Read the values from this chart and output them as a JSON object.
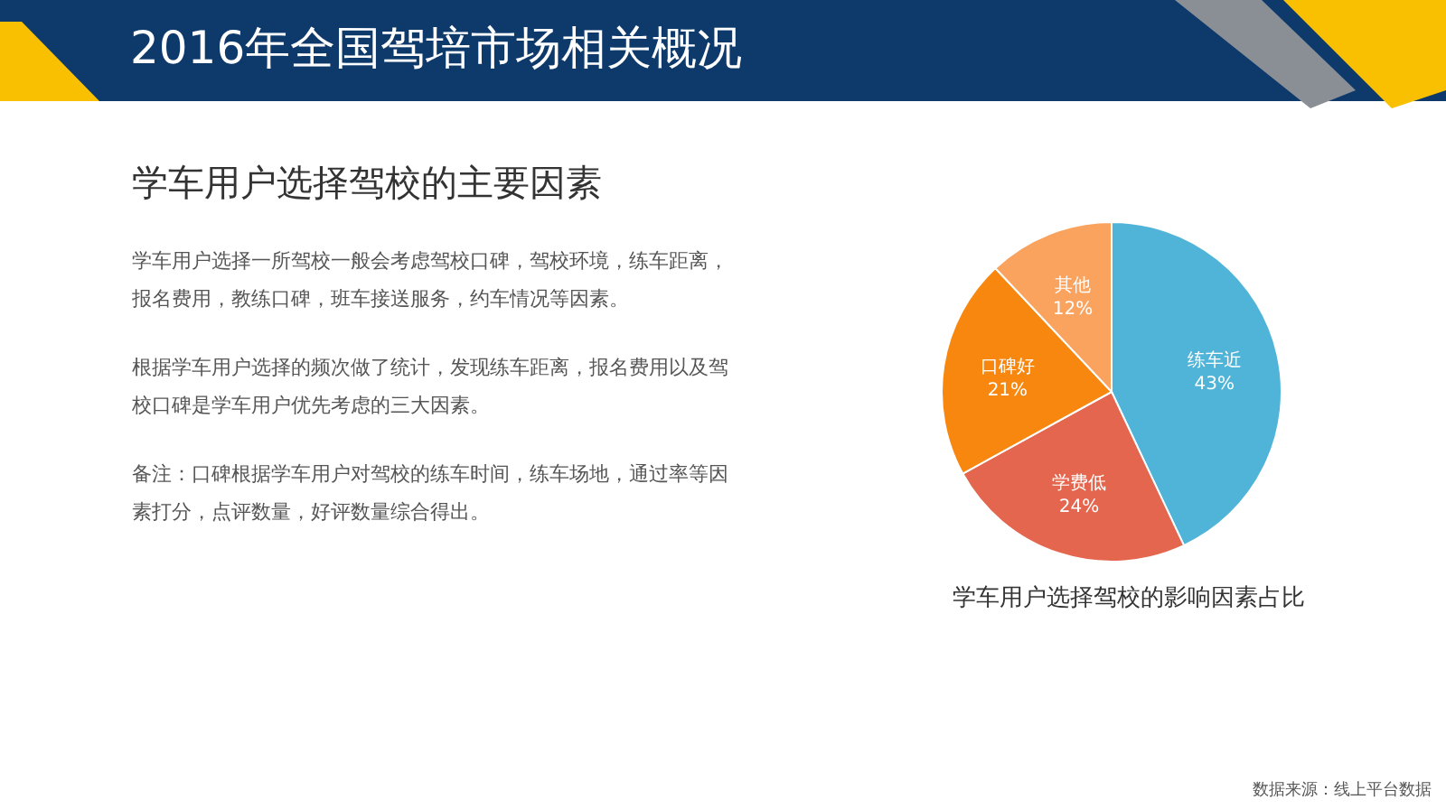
{
  "chart_data": {
    "type": "pie",
    "title": "2016年全国驾培市场相关概况",
    "subtitle": "学车用户选择驾校的主要因素",
    "categories": [
      "练车近",
      "学费低",
      "口碑好",
      "其他"
    ],
    "values": [
      43,
      24,
      21,
      12
    ],
    "value_labels": [
      "43%",
      "24%",
      "21%",
      "12%"
    ],
    "colors": [
      "#4fb4d8",
      "#e4664e",
      "#f7870f",
      "#f9a35f"
    ],
    "legend": false,
    "annotations": [
      "学车用户选择一所驾校一般会考虑驾校口碑，驾校环境，练车距离，报名费用，教练口碑，班车接送服务，约车情况等因素。",
      "根据学车用户选择的频次做了统计，发现练车距离，报名费用以及驾校口碑是学车用户优先考虑的三大因素。",
      "备注：口碑根据学车用户对驾校的练车时间，练车场地，通过率等因素打分，点评数量，好评数量综合得出。",
      "学车用户选择驾校的影响因素占比",
      "数据来源：线上平台数据"
    ]
  }
}
